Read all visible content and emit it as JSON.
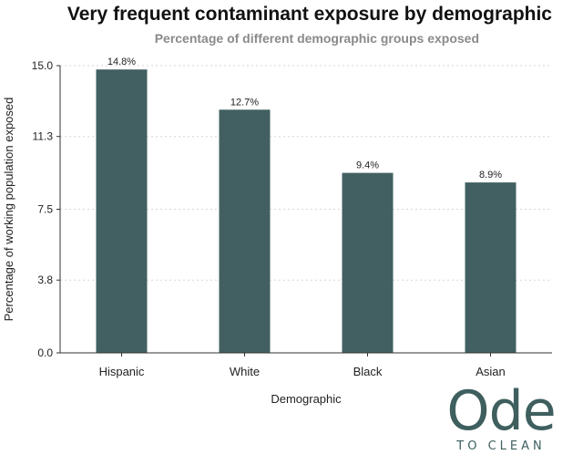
{
  "chart_data": {
    "type": "bar",
    "title": "Very frequent contaminant exposure by demographic",
    "subtitle": "Percentage of different demographic groups exposed",
    "xlabel": "Demographic",
    "ylabel": "Percentage of working population exposed",
    "categories": [
      "Hispanic",
      "White",
      "Black",
      "Asian"
    ],
    "values": [
      14.8,
      12.7,
      9.4,
      8.9
    ],
    "value_labels": [
      "14.8%",
      "12.7%",
      "9.4%",
      "8.9%"
    ],
    "yticks": [
      0.0,
      3.8,
      7.5,
      11.3,
      15.0
    ],
    "ytick_labels": [
      "0.0",
      "3.8",
      "7.5",
      "11.3",
      "15.0"
    ],
    "ylim": [
      0,
      15
    ],
    "grid": true,
    "bar_color": "#426061"
  },
  "logo": {
    "word": "Ode",
    "tagline": "TO CLEAN",
    "color": "#3f5f5f"
  }
}
